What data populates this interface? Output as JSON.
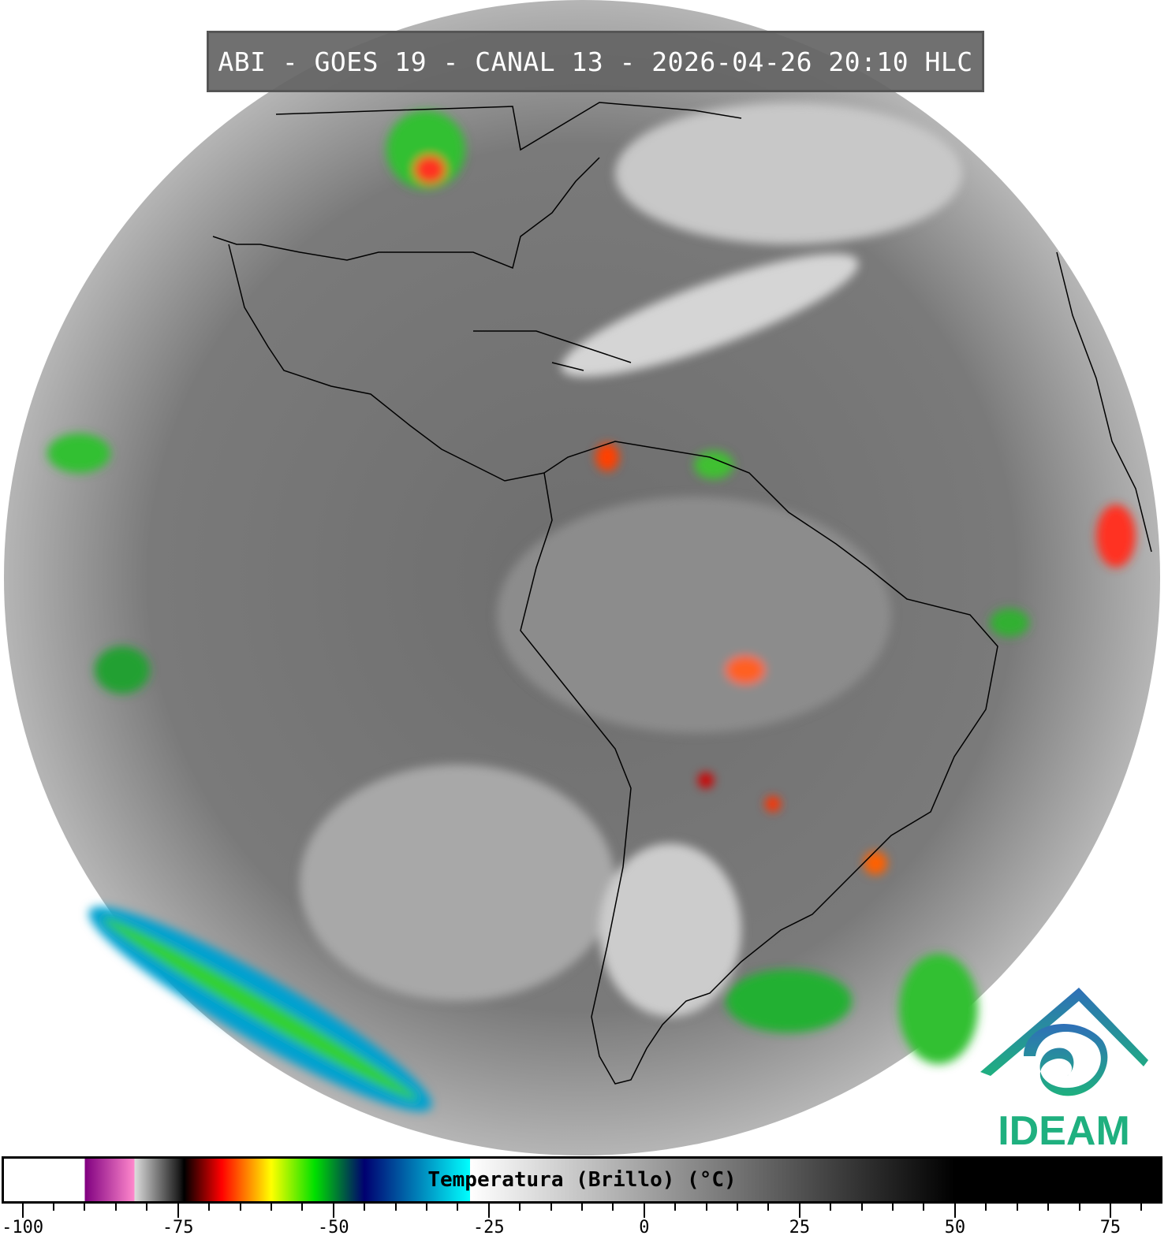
{
  "title": "ABI - GOES 19 - CANAL 13 - 2026-04-26 20:10 HLC",
  "logo": {
    "text": "IDEAM",
    "colors": [
      "#2f6fb8",
      "#1fb07f"
    ]
  },
  "colorbar": {
    "label": "Temperatura (Brillo) (°C)",
    "range": [
      -103,
      83
    ],
    "major_ticks": [
      -100,
      -75,
      -50,
      -25,
      0,
      25,
      50,
      75
    ],
    "tick_labels": [
      "-100",
      "-75",
      "-50",
      "-25",
      "0",
      "25",
      "50",
      "75"
    ],
    "minor_step": 5,
    "stops": [
      {
        "t": -103,
        "c": "#ffffff"
      },
      {
        "t": -90,
        "c": "#ffffff"
      },
      {
        "t": -90,
        "c": "#800080"
      },
      {
        "t": -82,
        "c": "#ff88cc"
      },
      {
        "t": -82,
        "c": "#dddddd"
      },
      {
        "t": -75,
        "c": "#222222"
      },
      {
        "t": -74,
        "c": "#000000"
      },
      {
        "t": -68,
        "c": "#ff0000"
      },
      {
        "t": -60,
        "c": "#ffff00"
      },
      {
        "t": -53,
        "c": "#00e000"
      },
      {
        "t": -45,
        "c": "#000070"
      },
      {
        "t": -28,
        "c": "#00ffff"
      },
      {
        "t": -28,
        "c": "#ffffff"
      },
      {
        "t": 50,
        "c": "#000000"
      },
      {
        "t": 83,
        "c": "#000000"
      }
    ]
  }
}
